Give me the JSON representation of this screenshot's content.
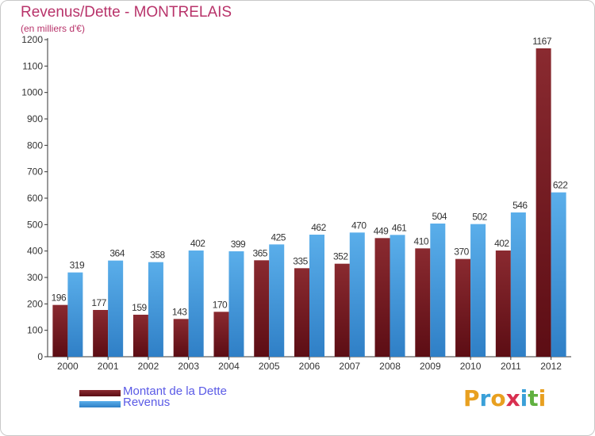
{
  "chart_data": {
    "type": "bar",
    "title": "Revenus/Dette - MONTRELAIS",
    "subtitle": "(en milliers d'€)",
    "categories": [
      "2000",
      "2001",
      "2002",
      "2003",
      "2004",
      "2005",
      "2006",
      "2007",
      "2008",
      "2009",
      "2010",
      "2011",
      "2012"
    ],
    "series": [
      {
        "name": "Montant de la Dette",
        "color": "#7a1a22",
        "values": [
          196,
          177,
          159,
          143,
          170,
          365,
          335,
          352,
          449,
          410,
          370,
          402,
          1167
        ]
      },
      {
        "name": "Revenus",
        "color": "#4a9fe0",
        "values": [
          319,
          364,
          358,
          402,
          399,
          425,
          462,
          470,
          461,
          504,
          502,
          546,
          622
        ]
      }
    ],
    "ylim": [
      0,
      1200
    ],
    "yticks": [
      0,
      100,
      200,
      300,
      400,
      500,
      600,
      700,
      800,
      900,
      1000,
      1100,
      1200
    ],
    "grid": false,
    "legend": "bottom-left"
  },
  "logo": {
    "text": "Proxiti",
    "letters": [
      "P",
      "r",
      "o",
      "x",
      "i",
      "t",
      "i"
    ],
    "colors": [
      "#e8a020",
      "#3aa0d8",
      "#e8a020",
      "#d83050",
      "#3aa0d8",
      "#60b040",
      "#e8a020"
    ]
  }
}
